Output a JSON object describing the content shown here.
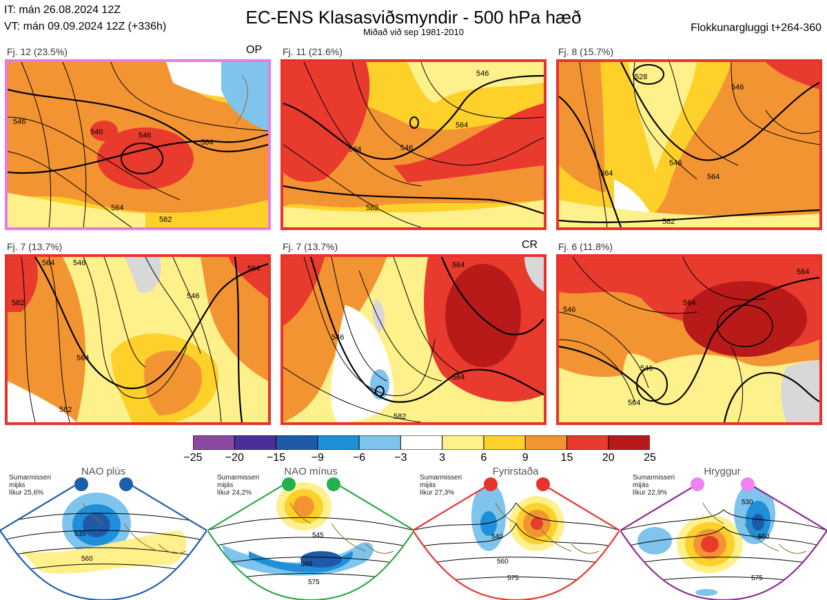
{
  "header": {
    "it": "IT: mán 26.08.2024 12Z",
    "vt": "VT: mán 09.09.2024 12Z  (+336h)",
    "title": "EC-ENS Klasasviðsmyndir - 500 hPa hæð",
    "subtitle": "Miðað við sep 1981-2010",
    "window": "Flokkunargluggi t+264-360"
  },
  "panels": [
    {
      "label": "Fj. 12 (23.5%)",
      "tag": "OP",
      "border": "#e87ae8",
      "contours": [
        "546",
        "540",
        "546",
        "564",
        "564",
        "582"
      ]
    },
    {
      "label": "Fj. 11 (21.6%)",
      "tag": "",
      "border": "#e8322c",
      "contours": [
        "546",
        "546",
        "564",
        "564",
        "582"
      ]
    },
    {
      "label": "Fj. 8 (15.7%)",
      "tag": "",
      "border": "#e8322c",
      "contours": [
        "528",
        "546",
        "546",
        "564",
        "564",
        "582"
      ]
    },
    {
      "label": "Fj. 7 (13.7%)",
      "tag": "",
      "border": "#e8322c",
      "contours": [
        "564",
        "546",
        "564",
        "582",
        "546",
        "564",
        "582"
      ]
    },
    {
      "label": "Fj. 7 (13.7%)",
      "tag": "CR",
      "border": "#e8322c",
      "contours": [
        "546",
        "564",
        "564",
        "582"
      ]
    },
    {
      "label": "Fj. 6 (11.8%)",
      "tag": "",
      "border": "#e8322c",
      "contours": [
        "564",
        "546",
        "564",
        "546",
        "564"
      ]
    }
  ],
  "colorbar": {
    "colors": [
      "#8b4aa2",
      "#4a2f9a",
      "#1f5aa8",
      "#1e8fd8",
      "#7ec4ec",
      "#ffffff",
      "#fef08a",
      "#fdd02a",
      "#f39433",
      "#e93a2e",
      "#b81a1a"
    ],
    "ticks": [
      "−25",
      "−20",
      "−15",
      "−9",
      "−6",
      "−3",
      "3",
      "6",
      "9",
      "15",
      "20",
      "25"
    ]
  },
  "regimes": [
    {
      "name": "NAO plús",
      "info": [
        "Sumarmisseri",
        "mijás",
        "líkur 25,6%"
      ],
      "color": "#1b5faa",
      "dot": "#1b5faa",
      "contours": [
        "535",
        "560"
      ]
    },
    {
      "name": "NAO mínus",
      "info": [
        "Sumarmisseri",
        "mijás",
        "líkur 24,2%"
      ],
      "color": "#2ea84a",
      "dot": "#22b14c",
      "contours": [
        "545",
        "560",
        "575"
      ]
    },
    {
      "name": "Fyrirstaða",
      "info": [
        "Sumarmisseri",
        "mijás",
        "líkur 27,3%"
      ],
      "color": "#e8322c",
      "dot": "#e8322c",
      "contours": [
        "540",
        "560",
        "575"
      ]
    },
    {
      "name": "Hryggur",
      "info": [
        "Sumarmisseri",
        "mijás",
        "líkur 22,9%"
      ],
      "color": "#8e2a90",
      "dot": "#ee82ee",
      "contours": [
        "530",
        "550",
        "575"
      ]
    }
  ]
}
